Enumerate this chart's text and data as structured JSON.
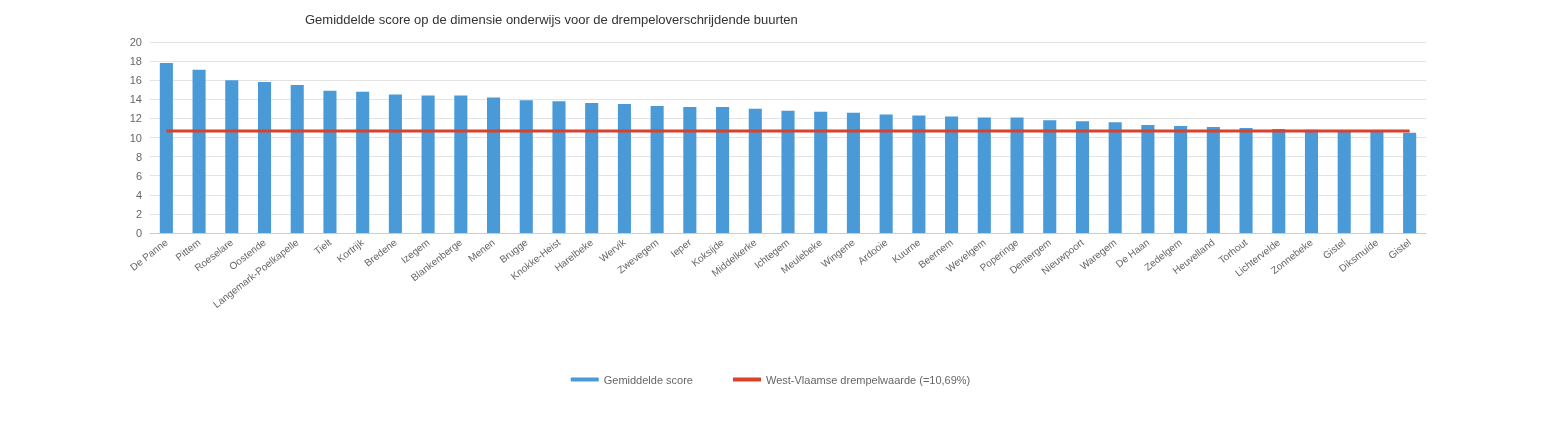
{
  "chart_data": {
    "type": "bar",
    "title": "Gemiddelde score op de dimensie onderwijs voor de drempeloverschrijdende buurten",
    "categories": [
      "De Panne",
      "Pittem",
      "Roeselare",
      "Oostende",
      "Langemark-Poelkapelle",
      "Tielt",
      "Kortrijk",
      "Bredene",
      "Izegem",
      "Blankenberge",
      "Menen",
      "Brugge",
      "Knokke-Heist",
      "Harelbeke",
      "Wervik",
      "Zwevegem",
      "Ieper",
      "Koksijde",
      "Middelkerke",
      "Ichtegem",
      "Meulebeke",
      "Wingene",
      "Ardooie",
      "Kuurne",
      "Beernem",
      "Wevelgem",
      "Poperinge",
      "Dentergem",
      "Nieuwpoort",
      "Waregem",
      "De Haan",
      "Zedelgem",
      "Heuvelland",
      "Torhout",
      "Lichtervelde",
      "Zonnebeke",
      "Gistel",
      "Diksmuide",
      "Gistel"
    ],
    "series": [
      {
        "name": "Gemiddelde score",
        "color": "#4a9ad8",
        "values": [
          17.8,
          17.1,
          16.0,
          15.8,
          15.5,
          14.9,
          14.8,
          14.5,
          14.4,
          14.4,
          14.2,
          13.9,
          13.8,
          13.6,
          13.5,
          13.3,
          13.2,
          13.2,
          13.0,
          12.8,
          12.7,
          12.6,
          12.4,
          12.3,
          12.2,
          12.1,
          12.1,
          11.8,
          11.7,
          11.6,
          11.3,
          11.2,
          11.1,
          11.0,
          10.9,
          10.8,
          10.7,
          10.6,
          10.5
        ]
      },
      {
        "name": "West-Vlaamse drempelwaarde (=10,69%)",
        "type": "line",
        "color": "#d9412b",
        "values": [
          10.69,
          10.69,
          10.69,
          10.69,
          10.69,
          10.69,
          10.69,
          10.69,
          10.69,
          10.69,
          10.69,
          10.69,
          10.69,
          10.69,
          10.69,
          10.69,
          10.69,
          10.69,
          10.69,
          10.69,
          10.69,
          10.69,
          10.69,
          10.69,
          10.69,
          10.69,
          10.69,
          10.69,
          10.69,
          10.69,
          10.69,
          10.69,
          10.69,
          10.69,
          10.69,
          10.69,
          10.69,
          10.69,
          10.69
        ]
      }
    ],
    "ylim": [
      0,
      20
    ],
    "yticks": [
      0,
      2,
      4,
      6,
      8,
      10,
      12,
      14,
      16,
      18,
      20
    ],
    "grid": "y",
    "legend": "bottom",
    "marker": "none"
  }
}
